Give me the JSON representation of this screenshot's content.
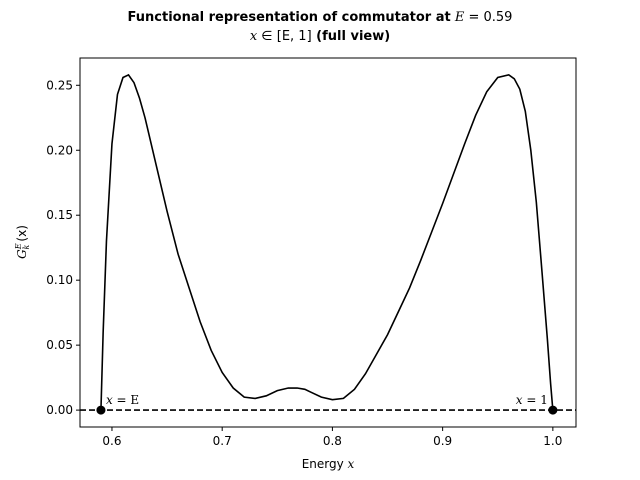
{
  "chart_data": {
    "type": "line",
    "title": {
      "line1_prefix": "Functional representation of commutator at",
      "line1_var": "E",
      "line1_eq": " = 0.59",
      "line2_math_var": "x",
      "line2_math_set": " ∈ [E, 1]",
      "line2_suffix": " (full view)"
    },
    "xlabel_text": "Energy ",
    "xlabel_var": "x",
    "ylabel_main": "G",
    "ylabel_sup": "E",
    "ylabel_sub": "k",
    "ylabel_arg": "(x)",
    "xlim": [
      0.571,
      1.021
    ],
    "ylim": [
      -0.013,
      0.271
    ],
    "xticks": [
      {
        "value": 0.6,
        "label": "0.6"
      },
      {
        "value": 0.7,
        "label": "0.7"
      },
      {
        "value": 0.8,
        "label": "0.8"
      },
      {
        "value": 0.9,
        "label": "0.9"
      },
      {
        "value": 1.0,
        "label": "1.0"
      }
    ],
    "yticks": [
      {
        "value": 0.0,
        "label": "0.00"
      },
      {
        "value": 0.05,
        "label": "0.05"
      },
      {
        "value": 0.1,
        "label": "0.10"
      },
      {
        "value": 0.15,
        "label": "0.15"
      },
      {
        "value": 0.2,
        "label": "0.20"
      },
      {
        "value": 0.25,
        "label": "0.25"
      }
    ],
    "grid": false,
    "series": [
      {
        "color": "#000000",
        "style": "solid",
        "x": [
          0.59,
          0.592,
          0.595,
          0.6,
          0.605,
          0.61,
          0.615,
          0.62,
          0.625,
          0.63,
          0.64,
          0.65,
          0.66,
          0.67,
          0.68,
          0.69,
          0.7,
          0.71,
          0.72,
          0.73,
          0.74,
          0.75,
          0.76,
          0.768,
          0.775,
          0.78,
          0.79,
          0.8,
          0.81,
          0.82,
          0.83,
          0.84,
          0.85,
          0.86,
          0.87,
          0.88,
          0.89,
          0.9,
          0.91,
          0.92,
          0.93,
          0.94,
          0.95,
          0.96,
          0.965,
          0.97,
          0.975,
          0.98,
          0.985,
          0.99,
          0.995,
          0.998,
          1.0
        ],
        "y": [
          0.0,
          0.06,
          0.13,
          0.205,
          0.243,
          0.256,
          0.258,
          0.252,
          0.24,
          0.225,
          0.189,
          0.153,
          0.12,
          0.094,
          0.068,
          0.046,
          0.029,
          0.017,
          0.01,
          0.009,
          0.011,
          0.015,
          0.017,
          0.017,
          0.016,
          0.014,
          0.01,
          0.008,
          0.009,
          0.016,
          0.028,
          0.043,
          0.058,
          0.076,
          0.094,
          0.115,
          0.137,
          0.159,
          0.182,
          0.205,
          0.227,
          0.245,
          0.256,
          0.258,
          0.255,
          0.247,
          0.23,
          0.2,
          0.16,
          0.108,
          0.055,
          0.02,
          0.0
        ]
      },
      {
        "color": "#000000",
        "style": "dashed",
        "x": [
          0.571,
          1.021
        ],
        "y": [
          0.0,
          0.0
        ]
      }
    ],
    "markers": [
      {
        "x": 0.59,
        "y": 0.0,
        "label_var": "x",
        "label_eq": " = E",
        "anchor": "start"
      },
      {
        "x": 1.0,
        "y": 0.0,
        "label_var": "x",
        "label_eq": " = 1",
        "anchor": "end"
      }
    ]
  }
}
